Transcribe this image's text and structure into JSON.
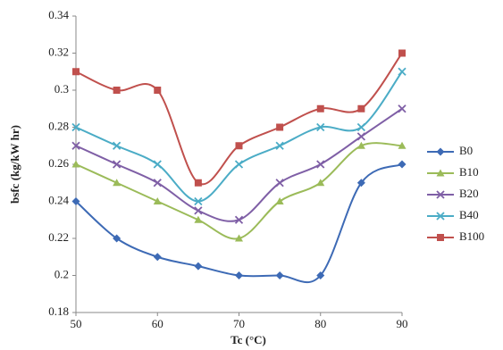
{
  "chart_data": {
    "type": "line",
    "x_label": "Tc (°C)",
    "y_label": "bsfc (kg/kW hr)",
    "x": [
      50,
      55,
      60,
      65,
      70,
      75,
      80,
      85,
      90
    ],
    "series": [
      {
        "name": "B0",
        "color": "#3d6ab5",
        "marker": "diamond",
        "values": [
          0.24,
          0.22,
          0.21,
          0.205,
          0.2,
          0.2,
          0.2,
          0.25,
          0.26
        ]
      },
      {
        "name": "B10",
        "color": "#9bbb59",
        "marker": "triangle",
        "values": [
          0.26,
          0.25,
          0.24,
          0.23,
          0.22,
          0.24,
          0.25,
          0.27,
          0.27
        ]
      },
      {
        "name": "B20",
        "color": "#7f5fa6",
        "marker": "cross",
        "values": [
          0.27,
          0.26,
          0.25,
          0.235,
          0.23,
          0.25,
          0.26,
          0.275,
          0.29
        ]
      },
      {
        "name": "B40",
        "color": "#4bacc6",
        "marker": "cross",
        "values": [
          0.28,
          0.27,
          0.26,
          0.24,
          0.26,
          0.27,
          0.28,
          0.28,
          0.31
        ]
      },
      {
        "name": "B100",
        "color": "#c0504d",
        "marker": "square",
        "values": [
          0.31,
          0.3,
          0.3,
          0.25,
          0.27,
          0.28,
          0.29,
          0.29,
          0.32
        ]
      }
    ],
    "xlim": [
      50,
      90
    ],
    "xticks": [
      50,
      60,
      70,
      80,
      90
    ],
    "ylim": [
      0.18,
      0.34
    ],
    "yticks": [
      0.18,
      0.2,
      0.22,
      0.24,
      0.26,
      0.28,
      0.3,
      0.32,
      0.34
    ],
    "legend": "right"
  }
}
